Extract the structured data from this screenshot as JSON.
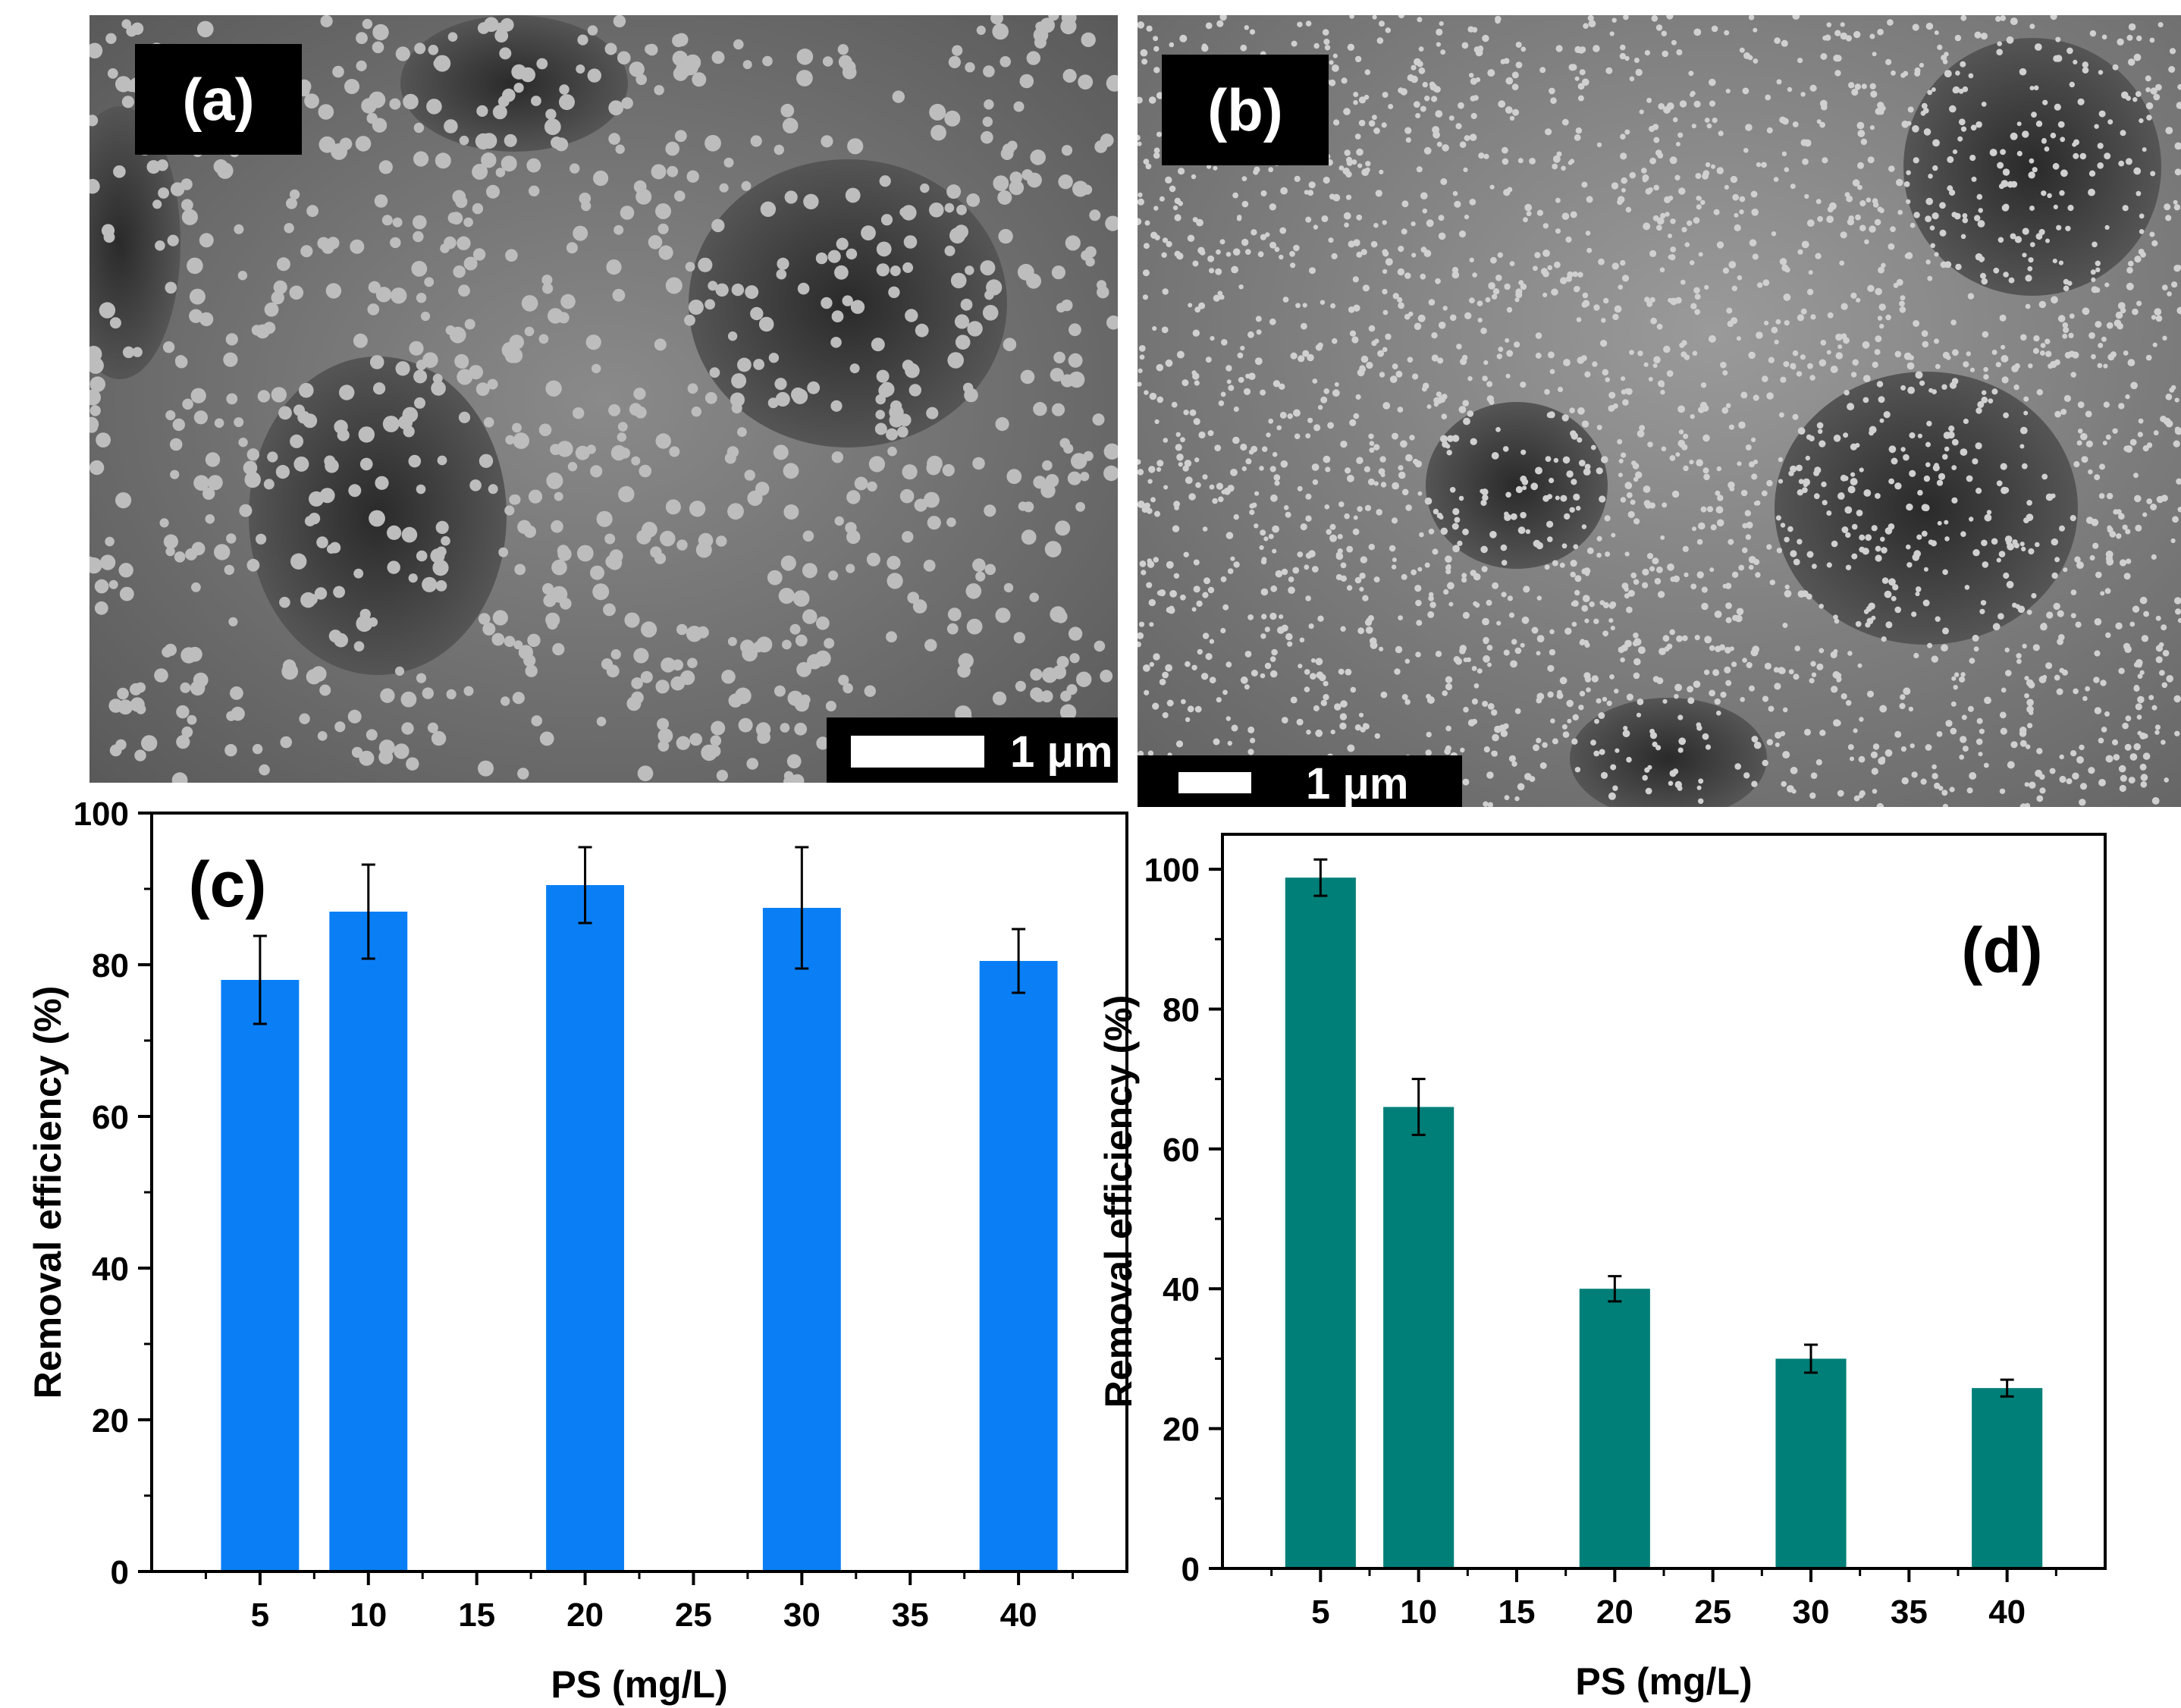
{
  "micrographs": [
    {
      "label": "(a)",
      "scale_bar": "1 μm"
    },
    {
      "label": "(b)",
      "scale_bar": "1 μm"
    }
  ],
  "colors": {
    "bar_c": "#0a7ff5",
    "bar_d": "#007f78",
    "axis": "#000000"
  },
  "chart_data": [
    {
      "type": "bar",
      "panel_label": "(c)",
      "xlabel": "PS (mg/L)",
      "ylabel": "Removal efficiency (%)",
      "x_ticks": [
        5,
        10,
        15,
        20,
        25,
        30,
        35,
        40
      ],
      "x_range": [
        0,
        45
      ],
      "ylim": [
        0,
        100
      ],
      "y_ticks": [
        0,
        20,
        40,
        60,
        80,
        100
      ],
      "categories": [
        5,
        10,
        20,
        30,
        40
      ],
      "values": [
        78,
        87,
        90.5,
        87.5,
        80.5
      ],
      "errors": [
        5.8,
        6.2,
        5.0,
        8.0,
        4.2
      ],
      "grid": false,
      "legend": "none"
    },
    {
      "type": "bar",
      "panel_label": "(d)",
      "xlabel": "PS (mg/L)",
      "ylabel": "Removal efficiency (%)",
      "x_ticks": [
        5,
        10,
        15,
        20,
        25,
        30,
        35,
        40
      ],
      "x_range": [
        0,
        45
      ],
      "ylim": [
        0,
        105
      ],
      "y_ticks": [
        0,
        20,
        40,
        60,
        80,
        100
      ],
      "categories": [
        5,
        10,
        20,
        30,
        40
      ],
      "values": [
        98.8,
        66,
        40,
        30,
        25.8
      ],
      "errors": [
        2.6,
        4.0,
        1.8,
        2.0,
        1.2
      ],
      "grid": false,
      "legend": "none"
    }
  ]
}
